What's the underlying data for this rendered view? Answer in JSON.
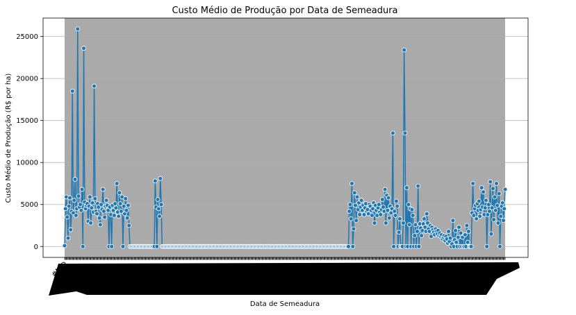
{
  "chart_data": {
    "type": "line",
    "title": "Custo Médio de Produção por Data de Semeadura",
    "xlabel": "Data de Semeadura",
    "ylabel": "Custo Médio de Produção (R$ por ha)",
    "first_category": "#N/D",
    "ylim": [
      -1300,
      27200
    ],
    "yticks": [
      0,
      5000,
      10000,
      15000,
      20000,
      25000
    ],
    "grid": "y",
    "legend": "none",
    "colors": {
      "line": "#1f77b4",
      "marker_edge": "#ffffff",
      "plot_bg": "#aaaaaa",
      "grid": "#b0b0b0"
    },
    "point_count": 480,
    "series": [
      {
        "values": [
          100,
          4500,
          5900,
          3500,
          1000,
          4800,
          5800,
          2000,
          4200,
          18500,
          4000,
          5500,
          8000,
          3700,
          4500,
          25900,
          6000,
          4700,
          5000,
          4300,
          6800,
          0,
          23600,
          5300,
          4500,
          4900,
          5100,
          3000,
          4800,
          5900,
          2800,
          4600,
          5200,
          4100,
          19100,
          5700,
          4200,
          3900,
          5100,
          4700,
          3400,
          2600,
          5000,
          4400,
          6800,
          4200,
          3500,
          4800,
          5500,
          4900,
          4300,
          0,
          4700,
          3800,
          0,
          4900,
          4300,
          3700,
          5100,
          4600,
          7500,
          4100,
          3600,
          6400,
          5100,
          4200,
          5900,
          0,
          4800,
          3900,
          5700,
          4300,
          3400,
          4900,
          2500,
          0,
          0,
          0,
          0,
          0,
          0,
          0,
          0,
          0,
          0,
          0,
          0,
          0,
          0,
          0,
          0,
          0,
          0,
          0,
          0,
          0,
          0,
          0,
          0,
          0,
          0,
          0,
          0,
          0,
          7800,
          4700,
          0,
          5600,
          4500,
          3600,
          8100,
          5000,
          0,
          0,
          0,
          0,
          0,
          0,
          0,
          0,
          0,
          0,
          0,
          0,
          0,
          0,
          0,
          0,
          0,
          0,
          0,
          0,
          0,
          0,
          0,
          0,
          0,
          0,
          0,
          0,
          0,
          0,
          0,
          0,
          0,
          0,
          0,
          0,
          0,
          0,
          0,
          0,
          0,
          0,
          0,
          0,
          0,
          0,
          0,
          0,
          0,
          0,
          0,
          0,
          0,
          0,
          0,
          0,
          0,
          0,
          0,
          0,
          0,
          0,
          0,
          0,
          0,
          0,
          0,
          0,
          0,
          0,
          0,
          0,
          0,
          0,
          0,
          0,
          0,
          0,
          0,
          0,
          0,
          0,
          0,
          0,
          0,
          0,
          0,
          0,
          0,
          0,
          0,
          0,
          0,
          0,
          0,
          0,
          0,
          0,
          0,
          0,
          0,
          0,
          0,
          0,
          0,
          0,
          0,
          0,
          0,
          0,
          0,
          0,
          0,
          0,
          0,
          0,
          0,
          0,
          0,
          0,
          0,
          0,
          0,
          0,
          0,
          0,
          0,
          0,
          0,
          0,
          0,
          0,
          0,
          0,
          0,
          0,
          0,
          0,
          0,
          0,
          0,
          0,
          0,
          0,
          0,
          0,
          0,
          0,
          0,
          0,
          0,
          0,
          0,
          0,
          0,
          0,
          0,
          0,
          0,
          0,
          0,
          0,
          0,
          0,
          0,
          0,
          0,
          0,
          0,
          0,
          0,
          0,
          0,
          0,
          0,
          0,
          0,
          0,
          0,
          0,
          0,
          0,
          0,
          0,
          0,
          0,
          0,
          0,
          0,
          0,
          0,
          0,
          0,
          0,
          0,
          0,
          0,
          0,
          0,
          0,
          0,
          0,
          0,
          0,
          0,
          0,
          0,
          0,
          0,
          0,
          0,
          0,
          0,
          0,
          0,
          4200,
          5000,
          3300,
          7500,
          0,
          2100,
          6400,
          4900,
          3100,
          5900,
          4400,
          5200,
          3800,
          4700,
          5500,
          4300,
          4900,
          3800,
          4600,
          5100,
          4200,
          4400,
          3900,
          5000,
          4800,
          4300,
          3700,
          4500,
          5200,
          2800,
          4900,
          4300,
          3700,
          4600,
          5000,
          4100,
          3800,
          4400,
          5600,
          4700,
          4200,
          6800,
          2800,
          6100,
          4300,
          5800,
          3400,
          4800,
          4000,
          4500,
          13500,
          0,
          4200,
          3700,
          5400,
          4800,
          0,
          1700,
          3300,
          0,
          0,
          0,
          2800,
          23400,
          13500,
          0,
          7000,
          0,
          5000,
          2600,
          4500,
          0,
          4400,
          3700,
          0,
          1300,
          2600,
          0,
          1800,
          7200,
          0,
          2700,
          2200,
          1300,
          1900,
          2700,
          3300,
          2300,
          1800,
          3900,
          2800,
          2100,
          1800,
          2500,
          1200,
          2300,
          2000,
          1700,
          1400,
          2100,
          1800,
          1500,
          1900,
          1300,
          1600,
          1200,
          1400,
          900,
          1100,
          1300,
          700,
          1200,
          900,
          400,
          1800,
          600,
          1000,
          0,
          300,
          3100,
          0,
          800,
          1900,
          500,
          0,
          1100,
          2300,
          0,
          1600,
          0,
          1100,
          0,
          0,
          1400,
          0,
          2500,
          500,
          1800,
          0,
          0,
          0,
          4000,
          7500,
          3700,
          4500,
          4900,
          3300,
          5100,
          4300,
          5400,
          3600,
          4400,
          7000,
          4700,
          6500,
          3800,
          4600,
          5500,
          0,
          3800,
          5000,
          4200,
          7700,
          1500,
          4600,
          6900,
          3200,
          5900,
          4300,
          7500,
          4900,
          2800,
          6300,
          0,
          3600,
          4800,
          5200,
          3100,
          4500,
          6800
        ]
      }
    ]
  }
}
